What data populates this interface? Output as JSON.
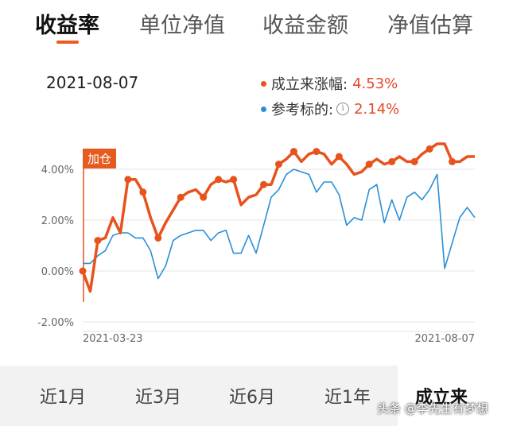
{
  "top_tabs": [
    {
      "label": "收益率",
      "active": true
    },
    {
      "label": "单位净值",
      "active": false
    },
    {
      "label": "收益金额",
      "active": false
    },
    {
      "label": "净值估算",
      "active": false
    }
  ],
  "header": {
    "date": "2021-08-07",
    "legend": [
      {
        "name": "成立来涨幅:",
        "value": "4.53%",
        "color": "#e8521c"
      },
      {
        "name": "参考标的:",
        "value": "2.14%",
        "color": "#2a8fd6",
        "info_icon": "info-icon"
      }
    ]
  },
  "marker_label": "加仓",
  "range_tabs": [
    {
      "label": "近1月",
      "active": false
    },
    {
      "label": "近3月",
      "active": false
    },
    {
      "label": "近6月",
      "active": false
    },
    {
      "label": "近1年",
      "active": false
    },
    {
      "label": "成立来",
      "active": true
    }
  ],
  "watermark": "头条 @李先生有梦想",
  "chart_data": {
    "type": "line",
    "ylim": [
      -2.0,
      5.0
    ],
    "yticks": [
      "4.00%",
      "2.00%",
      "0.00%",
      "-2.00%"
    ],
    "ytick_values": [
      4,
      2,
      0,
      -2
    ],
    "x_start_label": "2021-03-23",
    "x_end_label": "2021-08-07",
    "grid": true,
    "series": [
      {
        "name": "成立来涨幅",
        "color": "#e8521c",
        "values": [
          0.0,
          -0.8,
          1.2,
          1.3,
          2.1,
          1.5,
          3.6,
          3.6,
          3.1,
          2.1,
          1.3,
          1.9,
          2.4,
          2.9,
          3.1,
          3.2,
          2.9,
          3.4,
          3.6,
          3.5,
          3.6,
          2.6,
          2.9,
          3.0,
          3.4,
          3.4,
          4.2,
          4.4,
          4.7,
          4.3,
          4.6,
          4.7,
          4.6,
          4.2,
          4.5,
          4.2,
          3.8,
          3.9,
          4.2,
          4.4,
          4.2,
          4.3,
          4.5,
          4.3,
          4.3,
          4.6,
          4.8,
          5.0,
          5.0,
          4.3,
          4.3,
          4.5,
          4.5
        ],
        "markers": [
          0,
          2,
          6,
          8,
          10,
          13,
          16,
          18,
          20,
          24,
          26,
          28,
          31,
          34,
          38,
          41,
          44,
          46,
          49
        ]
      },
      {
        "name": "参考标的",
        "color": "#2a8fd6",
        "values": [
          0.3,
          0.3,
          0.6,
          0.8,
          1.4,
          1.5,
          1.5,
          1.3,
          1.3,
          0.8,
          -0.3,
          0.2,
          1.2,
          1.4,
          1.5,
          1.6,
          1.6,
          1.2,
          1.5,
          1.6,
          0.7,
          0.7,
          1.4,
          0.7,
          1.8,
          2.9,
          3.2,
          3.8,
          4.0,
          3.9,
          3.8,
          3.1,
          3.5,
          3.5,
          3.0,
          1.8,
          2.1,
          2.0,
          3.2,
          3.4,
          1.9,
          2.8,
          2.0,
          2.9,
          3.1,
          2.8,
          3.2,
          3.8,
          0.1,
          1.1,
          2.1,
          2.5,
          2.1
        ]
      }
    ]
  }
}
